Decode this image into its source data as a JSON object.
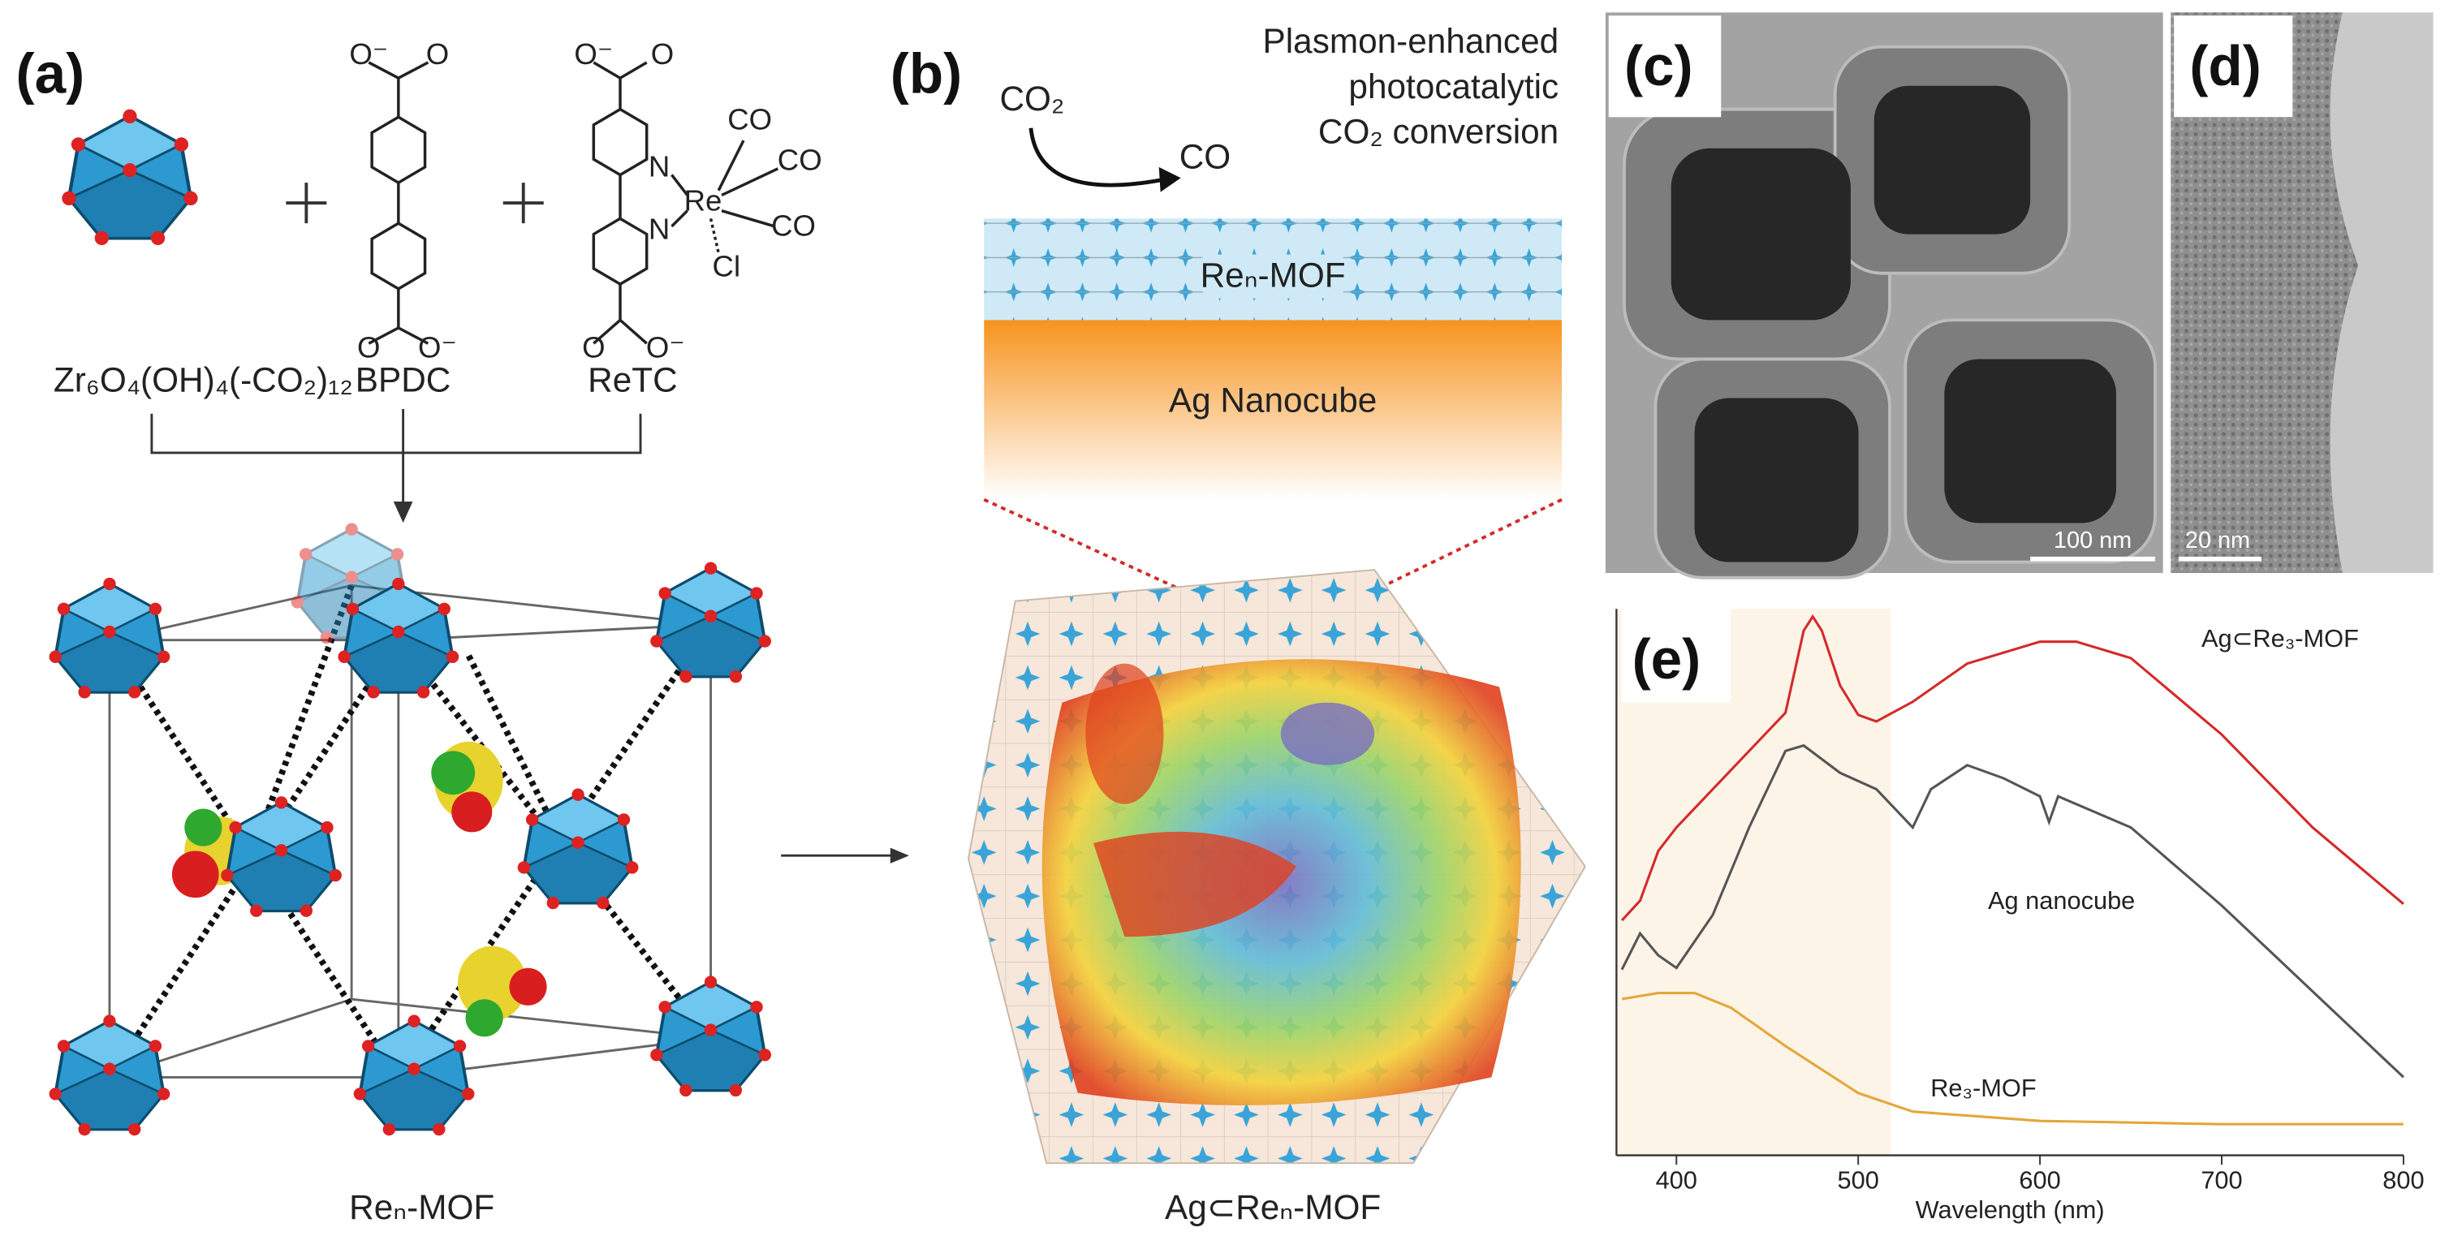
{
  "panel_a": {
    "label": "(a)",
    "cluster_formula": "Zr₆O₄(OH)₄(-CO₂)₁₂",
    "linker1": {
      "name": "BPDC",
      "top_atoms": [
        "O⁻",
        "O"
      ],
      "bottom_atoms": [
        "O",
        "O⁻"
      ]
    },
    "linker2": {
      "name": "ReTC",
      "top_atoms": [
        "O⁻",
        "O"
      ],
      "bottom_atoms": [
        "O",
        "O⁻"
      ],
      "atoms": [
        "N",
        "N",
        "Re",
        "CO",
        "CO",
        "CO",
        "Cl"
      ]
    },
    "product": "Reₙ-MOF"
  },
  "panel_b": {
    "label": "(b)",
    "heading": [
      "Plasmon-enhanced",
      "photocatalytic",
      "CO₂ conversion"
    ],
    "reactant": "CO₂",
    "product": "CO",
    "layer_top": "Reₙ-MOF",
    "layer_bottom": "Ag Nanocube",
    "caption": "Ag⊂Reₙ-MOF"
  },
  "panel_c": {
    "label": "(c)",
    "scale_bar": "100 nm"
  },
  "panel_d": {
    "label": "(d)",
    "scale_bar": "20 nm"
  },
  "panel_e": {
    "label": "(e)",
    "chart_data": {
      "type": "line",
      "x_label": "Wavelength (nm)",
      "xlim": [
        367,
        800
      ],
      "xticks": [
        400,
        500,
        600,
        700,
        800
      ],
      "ylim": [
        0,
        100
      ],
      "shaded_range": [
        367,
        518
      ],
      "series": [
        {
          "name": "Ag⊂Re₃-MOF",
          "color": "#d42a2a",
          "x": [
            370,
            380,
            390,
            400,
            420,
            440,
            460,
            470,
            475,
            480,
            490,
            500,
            510,
            530,
            560,
            600,
            620,
            650,
            700,
            750,
            800
          ],
          "values": [
            43,
            46.6,
            55.7,
            60,
            67,
            74,
            81,
            96,
            98.6,
            96,
            86,
            80.6,
            79.4,
            83,
            90,
            94,
            94,
            91,
            77,
            60,
            46
          ]
        },
        {
          "name": "Ag nanocube",
          "color": "#555555",
          "x": [
            370,
            380,
            390,
            400,
            420,
            440,
            460,
            470,
            490,
            510,
            530,
            540,
            560,
            580,
            600,
            605,
            610,
            650,
            700,
            750,
            800
          ],
          "values": [
            34,
            40.6,
            36.6,
            34.3,
            44,
            60,
            74,
            75,
            70,
            67,
            60,
            67,
            71.4,
            69,
            65.7,
            61,
            65.7,
            60,
            45.7,
            30,
            14.3
          ]
        },
        {
          "name": "Re₃-MOF",
          "color": "#e3a73a",
          "x": [
            370,
            390,
            410,
            430,
            460,
            500,
            530,
            600,
            700,
            800
          ],
          "values": [
            28.6,
            29.7,
            29.7,
            27,
            20,
            11.4,
            8,
            6.3,
            5.7,
            5.7
          ]
        }
      ]
    }
  }
}
